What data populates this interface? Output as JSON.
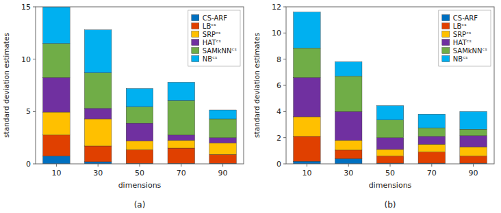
{
  "chart_data": [
    {
      "type": "bar",
      "stacked": true,
      "subtitle": "(a)",
      "xlabel": "dimensions",
      "ylabel": "standard deviation estimates",
      "categories": [
        "10",
        "30",
        "50",
        "70",
        "90"
      ],
      "ylim": [
        0,
        15
      ],
      "yticks": [
        0,
        5,
        10,
        15
      ],
      "grid": false,
      "legend": "upper right",
      "series": [
        {
          "name": "CS-ARF",
          "color": "#0070c0",
          "values": [
            0.75,
            0.2,
            0.05,
            0.05,
            0.05
          ]
        },
        {
          "name": "LBᶜˢ",
          "color": "#e04000",
          "values": [
            2.0,
            1.5,
            1.3,
            1.45,
            0.85
          ]
        },
        {
          "name": "SRPᶜˢ",
          "color": "#ffc000",
          "values": [
            2.2,
            2.6,
            0.85,
            0.75,
            1.1
          ]
        },
        {
          "name": "HATᶜˢ",
          "color": "#7030a0",
          "values": [
            3.3,
            1.0,
            1.7,
            0.5,
            0.5
          ]
        },
        {
          "name": "SAMkNNᶜˢ",
          "color": "#70ad47",
          "values": [
            3.25,
            3.4,
            1.55,
            3.3,
            1.8
          ]
        },
        {
          "name": "NBᶜˢ",
          "color": "#00b0f0",
          "values": [
            3.5,
            4.1,
            1.75,
            1.75,
            0.85
          ]
        }
      ]
    },
    {
      "type": "bar",
      "stacked": true,
      "subtitle": "(b)",
      "xlabel": "dimensions",
      "ylabel": "standard deviation estimates",
      "categories": [
        "10",
        "30",
        "50",
        "70",
        "90"
      ],
      "ylim": [
        0,
        12
      ],
      "yticks": [
        0,
        2,
        4,
        6,
        8,
        10,
        12
      ],
      "grid": false,
      "legend": "upper right",
      "series": [
        {
          "name": "CS-ARF",
          "color": "#0070c0",
          "values": [
            0.2,
            0.4,
            0.05,
            0.05,
            0.05
          ]
        },
        {
          "name": "LBᶜˢ",
          "color": "#e04000",
          "values": [
            1.9,
            0.65,
            0.55,
            0.85,
            0.55
          ]
        },
        {
          "name": "SRPᶜˢ",
          "color": "#ffc000",
          "values": [
            1.5,
            0.75,
            0.5,
            0.6,
            0.7
          ]
        },
        {
          "name": "HATᶜˢ",
          "color": "#7030a0",
          "values": [
            3.0,
            2.2,
            0.9,
            0.6,
            0.85
          ]
        },
        {
          "name": "SAMkNNᶜˢ",
          "color": "#70ad47",
          "values": [
            2.25,
            2.7,
            1.35,
            0.65,
            0.5
          ]
        },
        {
          "name": "NBᶜˢ",
          "color": "#00b0f0",
          "values": [
            2.75,
            1.1,
            1.1,
            1.05,
            1.35
          ]
        }
      ]
    }
  ]
}
